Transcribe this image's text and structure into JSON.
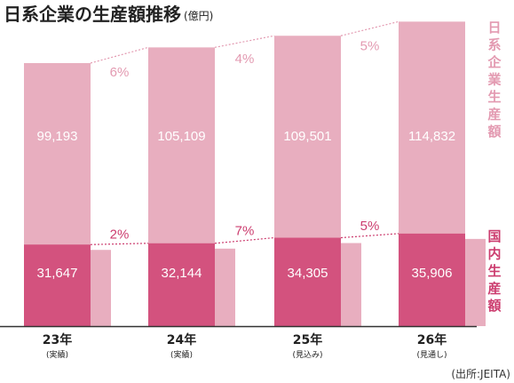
{
  "chart_data": {
    "type": "bar",
    "title": "日系企業の生産額推移",
    "title_unit": "(億円)",
    "categories": [
      "23年",
      "24年",
      "25年",
      "26年"
    ],
    "category_notes": [
      "(実績)",
      "(実績)",
      "(見込み)",
      "(見通し)"
    ],
    "series": [
      {
        "name": "日系企業生産額",
        "values": [
          99193,
          105109,
          109501,
          114832
        ],
        "labels": [
          "99,193",
          "105,109",
          "109,501",
          "114,832"
        ]
      },
      {
        "name": "国内生産額",
        "values": [
          31647,
          32144,
          34305,
          35906
        ],
        "labels": [
          "31,647",
          "32,144",
          "34,305",
          "35,906"
        ]
      }
    ],
    "growth_labels": {
      "total": [
        "6%",
        "4%",
        "5%"
      ],
      "domestic": [
        "2%",
        "7%",
        "5%"
      ]
    },
    "source": "(出所:JEITA)",
    "colors": {
      "total_bar": "#e8aebf",
      "domestic_bar": "#d3527e",
      "total_text": "#e39ab1",
      "domestic_text": "#cc3d6f",
      "value_text": "#ffffff",
      "axis": "#333333"
    }
  }
}
